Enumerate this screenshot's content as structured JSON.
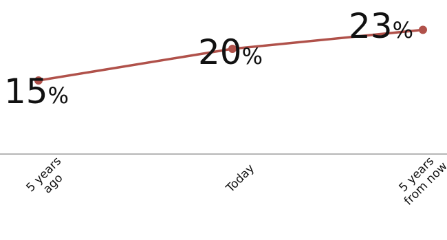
{
  "chart_data": {
    "type": "line",
    "categories": [
      [
        "5 years",
        "ago"
      ],
      [
        "Today"
      ],
      [
        "5 years",
        "from now"
      ]
    ],
    "values": [
      15,
      20,
      23
    ],
    "data_labels": [
      {
        "value": "15",
        "unit": "%"
      },
      {
        "value": "20",
        "unit": "%"
      },
      {
        "value": "23",
        "unit": "%"
      }
    ],
    "ylim": [
      0,
      25
    ],
    "grid": false,
    "colors": {
      "line": "#b0514a",
      "axis": "#9e9e9e",
      "text": "#111111"
    }
  }
}
